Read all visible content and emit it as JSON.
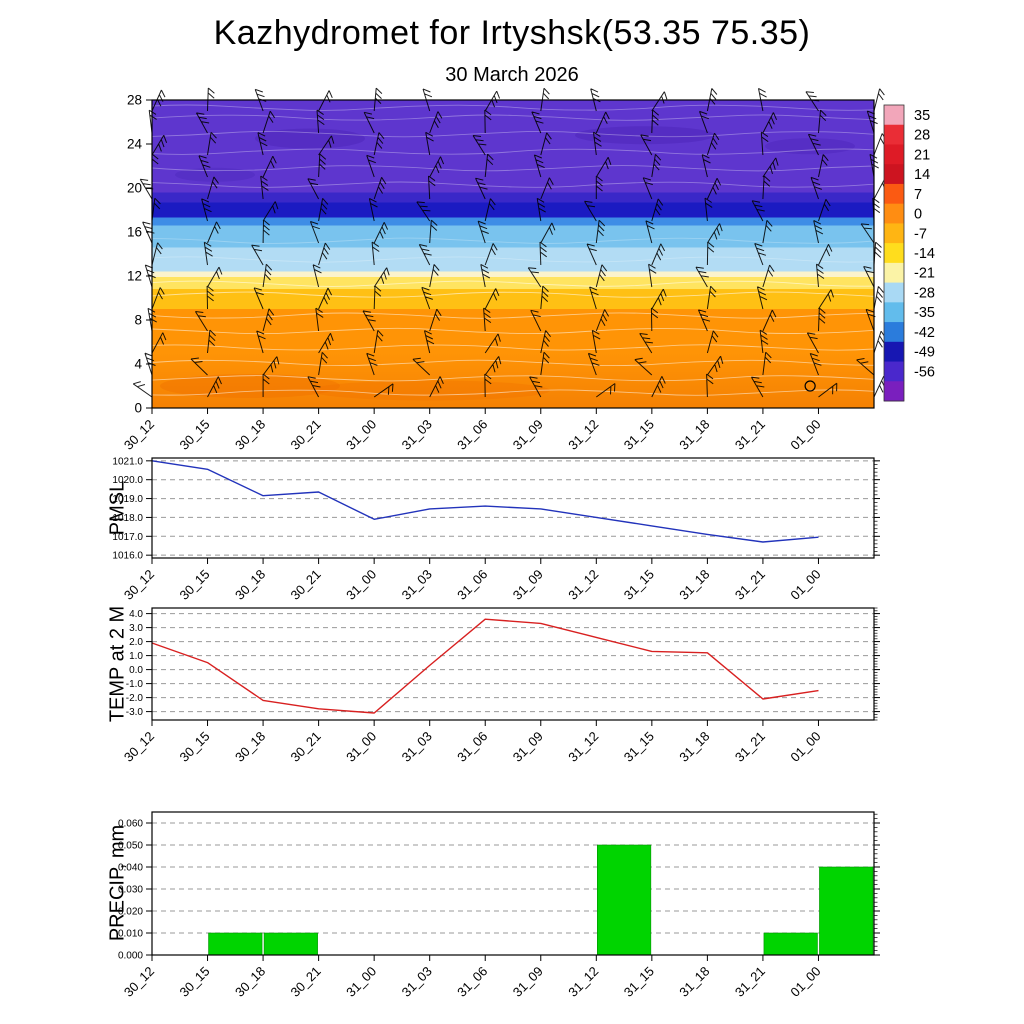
{
  "title": "Kazhydromet for Irtyshsk(53.35 75.35)",
  "subtitle": "30 March 2026",
  "x_labels": [
    "30_12",
    "30_15",
    "30_18",
    "30_21",
    "31_00",
    "31_03",
    "31_06",
    "31_09",
    "31_12",
    "31_15",
    "31_18",
    "31_21",
    "01_00"
  ],
  "chart_data": [
    {
      "type": "heatmap",
      "name": "temperature-wind-height-time-cross-section",
      "categories": [
        "30_12",
        "30_15",
        "30_18",
        "30_21",
        "31_00",
        "31_03",
        "31_06",
        "31_09",
        "31_12",
        "31_15",
        "31_18",
        "31_21",
        "01_00"
      ],
      "ylim": [
        0,
        28
      ],
      "y_ticks": [
        0,
        4,
        8,
        12,
        16,
        20,
        24,
        28
      ],
      "temperature_bands": [
        {
          "from": 0,
          "to": 9,
          "color": "#ff9406"
        },
        {
          "from": 9,
          "to": 10.8,
          "color": "#ffc014"
        },
        {
          "from": 10.8,
          "to": 11.9,
          "color": "#ffe460"
        },
        {
          "from": 11.9,
          "to": 12.4,
          "color": "#fbf3cc"
        },
        {
          "from": 12.4,
          "to": 14.6,
          "color": "#b2dcf4"
        },
        {
          "from": 14.6,
          "to": 16.6,
          "color": "#79c3ee"
        },
        {
          "from": 16.6,
          "to": 17.3,
          "color": "#3e8de6"
        },
        {
          "from": 17.3,
          "to": 18.7,
          "color": "#1b1bc2"
        },
        {
          "from": 18.7,
          "to": 19.6,
          "color": "#3a28c8"
        },
        {
          "from": 19.6,
          "to": 28,
          "color": "#5e36ce"
        }
      ],
      "colorbar": {
        "tick_labels": [
          "35",
          "28",
          "21",
          "14",
          "7",
          "0",
          "-7",
          "-14",
          "-21",
          "-28",
          "-35",
          "-42",
          "-49",
          "-56"
        ],
        "colors": [
          "#f2a6ba",
          "#ea2d36",
          "#de1b26",
          "#cd1420",
          "#fb5a12",
          "#ff8d12",
          "#ffb513",
          "#ffdd1d",
          "#fbf3a6",
          "#a9d9f4",
          "#62bcec",
          "#2b7cdc",
          "#1717b2",
          "#4a28cc",
          "#7a1fbe"
        ]
      },
      "overlay": "wind barbs grid over all times and heights; thin white contour lines",
      "marker_circle": {
        "near_time": "31_21",
        "height": 2
      }
    },
    {
      "type": "line",
      "title": "PMSL",
      "categories": [
        "30_12",
        "30_15",
        "30_18",
        "30_21",
        "31_00",
        "31_03",
        "31_06",
        "31_09",
        "31_12",
        "31_15",
        "31_18",
        "31_21",
        "01_00"
      ],
      "values": [
        1021.0,
        1020.55,
        1019.15,
        1019.35,
        1017.9,
        1018.45,
        1018.6,
        1018.45,
        1018.0,
        1017.55,
        1017.1,
        1016.7,
        1016.95
      ],
      "y_ticks": [
        1016,
        1017,
        1018,
        1019,
        1020,
        1021
      ],
      "ylim": [
        1015.85,
        1021.15
      ],
      "y_tick_decimals": 1,
      "grid": "horizontal dashed",
      "color": "#2233bb"
    },
    {
      "type": "line",
      "title": "TEMP at 2 M",
      "categories": [
        "30_12",
        "30_15",
        "30_18",
        "30_21",
        "31_00",
        "31_03",
        "31_06",
        "31_09",
        "31_12",
        "31_15",
        "31_18",
        "31_21",
        "01_00"
      ],
      "values": [
        1.9,
        0.5,
        -2.2,
        -2.8,
        -3.1,
        0.3,
        3.6,
        3.3,
        2.3,
        1.3,
        1.2,
        -2.1,
        -1.5
      ],
      "y_ticks": [
        -3,
        -2,
        -1,
        0,
        1,
        2,
        3,
        4
      ],
      "ylim": [
        -3.6,
        4.4
      ],
      "y_tick_decimals": 1,
      "grid": "horizontal dashed",
      "color": "#d82020"
    },
    {
      "type": "bar",
      "title": "PRECIP, mm",
      "categories": [
        "30_12",
        "30_15",
        "30_18",
        "30_21",
        "31_00",
        "31_03",
        "31_06",
        "31_09",
        "31_12",
        "31_15",
        "31_18",
        "31_21",
        "01_00"
      ],
      "values": [
        0,
        0.01,
        0.01,
        0,
        0,
        0,
        0,
        0,
        0.05,
        0,
        0,
        0.01,
        0.04
      ],
      "y_ticks": [
        0,
        0.01,
        0.02,
        0.03,
        0.04,
        0.05,
        0.06
      ],
      "ylim": [
        0,
        0.065
      ],
      "y_tick_decimals": 3,
      "grid": "horizontal dashed",
      "color": "#00d400"
    }
  ]
}
